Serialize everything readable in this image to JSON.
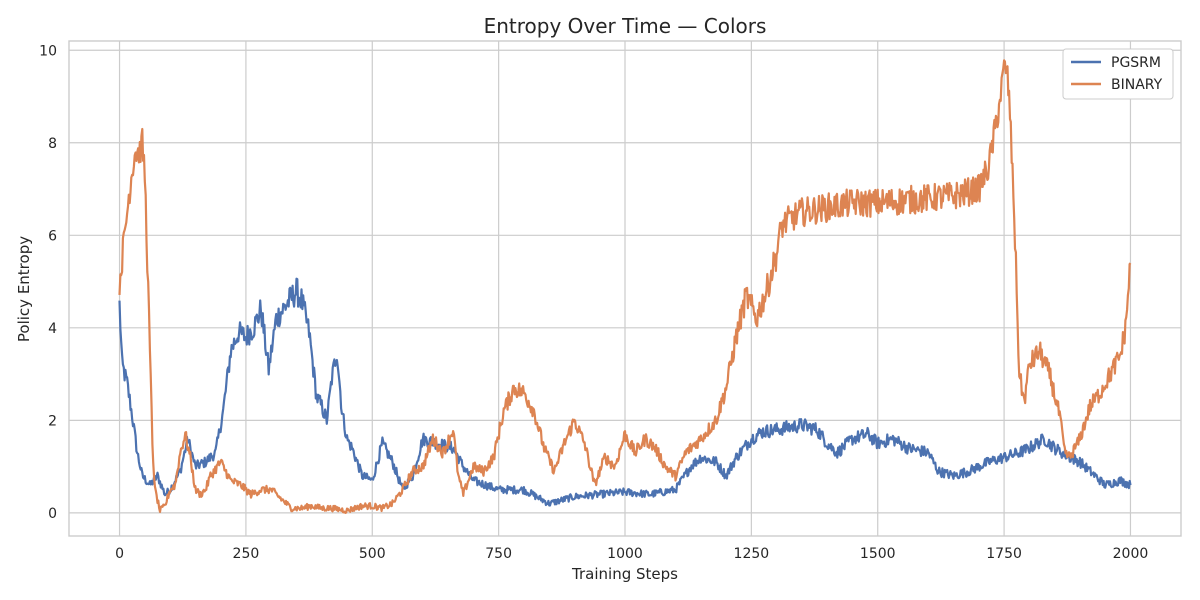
{
  "chart_data": {
    "type": "line",
    "title": "Entropy Over Time — Colors",
    "xlabel": "Training Steps",
    "ylabel": "Policy Entropy",
    "xlim": [
      -100,
      2100
    ],
    "ylim": [
      -0.5,
      10.2
    ],
    "xticks": [
      0,
      250,
      500,
      750,
      1000,
      1250,
      1500,
      1750,
      2000
    ],
    "xtick_labels": [
      "0",
      "250",
      "500",
      "750",
      "1000",
      "1250",
      "1500",
      "1750",
      "2000"
    ],
    "yticks": [
      0,
      2,
      4,
      6,
      8,
      10
    ],
    "ytick_labels": [
      "0",
      "2",
      "4",
      "6",
      "8",
      "10"
    ],
    "grid": true,
    "legend_position": "top-right",
    "series": [
      {
        "name": "PGSRM",
        "color": "#4c72b0",
        "x": [
          0,
          5,
          15,
          25,
          35,
          45,
          60,
          75,
          90,
          100,
          120,
          135,
          150,
          170,
          190,
          205,
          220,
          235,
          250,
          265,
          280,
          295,
          310,
          330,
          350,
          360,
          375,
          390,
          400,
          410,
          420,
          430,
          440,
          450,
          460,
          480,
          500,
          520,
          540,
          560,
          580,
          600,
          630,
          660,
          680,
          700,
          750,
          800,
          850,
          900,
          950,
          1000,
          1050,
          1100,
          1130,
          1150,
          1180,
          1200,
          1220,
          1250,
          1270,
          1300,
          1350,
          1380,
          1400,
          1420,
          1450,
          1480,
          1500,
          1530,
          1560,
          1600,
          1620,
          1650,
          1680,
          1700,
          1720,
          1750,
          1780,
          1800,
          1830,
          1850,
          1880,
          1900,
          1930,
          1950,
          1980,
          2000
        ],
        "y": [
          4.5,
          3.2,
          2.8,
          2.1,
          1.3,
          0.8,
          0.6,
          0.8,
          0.4,
          0.5,
          0.9,
          1.6,
          1.0,
          1.1,
          1.3,
          2.2,
          3.5,
          3.9,
          3.8,
          4.0,
          4.4,
          3.1,
          4.2,
          4.5,
          4.8,
          4.6,
          3.9,
          2.5,
          2.3,
          2.0,
          2.9,
          3.5,
          2.2,
          1.6,
          1.4,
          0.8,
          0.7,
          1.5,
          1.1,
          0.5,
          0.8,
          1.6,
          1.5,
          1.4,
          1.0,
          0.7,
          0.5,
          0.5,
          0.2,
          0.35,
          0.4,
          0.45,
          0.4,
          0.5,
          1.0,
          1.2,
          1.1,
          0.8,
          1.2,
          1.6,
          1.75,
          1.8,
          1.9,
          1.8,
          1.5,
          1.3,
          1.6,
          1.7,
          1.5,
          1.6,
          1.4,
          1.3,
          0.9,
          0.8,
          0.9,
          1.0,
          1.1,
          1.2,
          1.3,
          1.4,
          1.6,
          1.4,
          1.2,
          1.1,
          0.8,
          0.6,
          0.7,
          0.6
        ]
      },
      {
        "name": "BINARY",
        "color": "#dd8452",
        "x": [
          0,
          10,
          20,
          30,
          40,
          45,
          50,
          55,
          60,
          65,
          70,
          80,
          90,
          100,
          110,
          120,
          130,
          140,
          150,
          160,
          170,
          180,
          200,
          220,
          240,
          260,
          280,
          300,
          320,
          340,
          360,
          380,
          400,
          420,
          450,
          480,
          500,
          520,
          540,
          560,
          580,
          600,
          620,
          640,
          660,
          670,
          680,
          700,
          720,
          740,
          760,
          780,
          800,
          820,
          840,
          860,
          880,
          900,
          920,
          940,
          960,
          980,
          1000,
          1020,
          1040,
          1060,
          1080,
          1100,
          1120,
          1150,
          1180,
          1200,
          1220,
          1240,
          1260,
          1280,
          1300,
          1310,
          1320,
          1350,
          1400,
          1450,
          1500,
          1550,
          1600,
          1650,
          1700,
          1720,
          1740,
          1750,
          1755,
          1760,
          1770,
          1780,
          1790,
          1800,
          1820,
          1840,
          1860,
          1870,
          1880,
          1900,
          1920,
          1940,
          1960,
          1980,
          1990,
          2000
        ],
        "y": [
          5.0,
          6.0,
          7.0,
          7.8,
          7.8,
          8.0,
          7.3,
          5.5,
          3.5,
          1.5,
          0.5,
          0.05,
          0.15,
          0.5,
          0.6,
          1.3,
          1.7,
          1.2,
          0.5,
          0.4,
          0.5,
          0.8,
          1.1,
          0.7,
          0.6,
          0.4,
          0.5,
          0.5,
          0.3,
          0.1,
          0.1,
          0.15,
          0.1,
          0.1,
          0.05,
          0.15,
          0.15,
          0.1,
          0.2,
          0.5,
          0.9,
          1.0,
          1.6,
          1.3,
          1.8,
          0.8,
          0.4,
          1.0,
          0.9,
          1.2,
          2.2,
          2.7,
          2.6,
          2.2,
          1.4,
          0.9,
          1.5,
          2.0,
          1.5,
          0.6,
          1.2,
          1.0,
          1.7,
          1.3,
          1.6,
          1.4,
          1.0,
          0.8,
          1.3,
          1.6,
          2.0,
          2.7,
          3.8,
          4.7,
          4.2,
          4.8,
          5.6,
          6.2,
          6.3,
          6.5,
          6.6,
          6.7,
          6.7,
          6.75,
          6.8,
          6.85,
          7.0,
          7.5,
          8.8,
          9.6,
          9.6,
          9.0,
          6.5,
          3.0,
          2.4,
          3.2,
          3.5,
          3.0,
          2.1,
          1.3,
          1.2,
          1.6,
          2.3,
          2.6,
          3.0,
          3.4,
          4.0,
          5.4
        ]
      }
    ]
  }
}
